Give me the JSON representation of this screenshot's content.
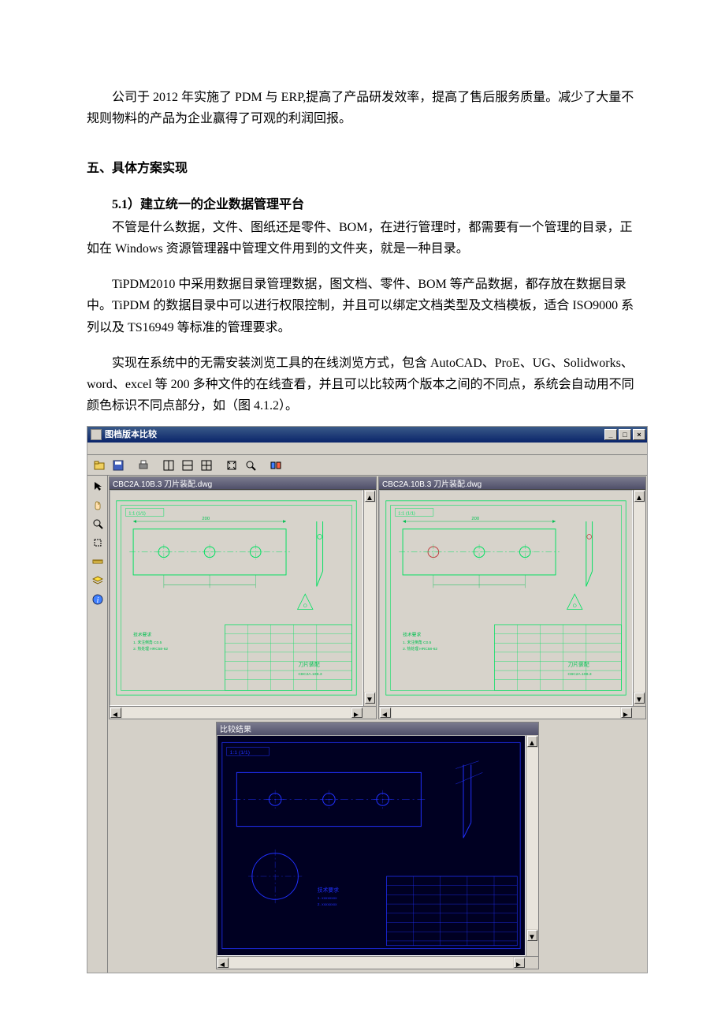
{
  "text": {
    "p1": "公司于 2012 年实施了 PDM 与 ERP,提高了产品研发效率，提高了售后服务质量。减少了大量不规则物料的产品为企业赢得了可观的利润回报。",
    "h1": "五、具体方案实现",
    "sh1": "5.1）建立统一的企业数据管理平台",
    "p2": "不管是什么数据，文件、图纸还是零件、BOM，在进行管理时，都需要有一个管理的目录，正如在 Windows 资源管理器中管理文件用到的文件夹，就是一种目录。",
    "p3": "TiPDM2010 中采用数据目录管理数据，图文档、零件、BOM 等产品数据，都存放在数据目录中。TiPDM 的数据目录中可以进行权限控制，并且可以绑定文档类型及文档模板，适合 ISO9000 系列以及 TS16949 等标准的管理要求。",
    "p4": "实现在系统中的无需安装浏览工具的在线浏览方式，包含 AutoCAD、ProE、UG、Solidworks、word、excel 等 200 多种文件的在线查看，并且可以比较两个版本之间的不同点，系统会自动用不同颜色标识不同点部分，如（图 4.1.2）。"
  },
  "screenshot": {
    "window_title": "图档版本比较",
    "winbtns": {
      "min": "_",
      "max": "□",
      "close": "×"
    },
    "toolbar_icons": [
      "open",
      "save",
      "sep",
      "print",
      "sep",
      "layout1",
      "layout2",
      "layout3",
      "sep",
      "fit",
      "zoom",
      "sep",
      "compare"
    ],
    "side_icons": [
      "arrow",
      "hand",
      "zoom",
      "pickbox",
      "measure",
      "layer",
      "info"
    ],
    "left_pane_title": "CBC2A.10B.3 刀片装配.dwg",
    "right_pane_title": "CBC2A.10B.3 刀片装配.dwg",
    "bottom_pane_title": "比较结果",
    "cad": {
      "stroke_main": "#00e060",
      "stroke_dim": "#00c050",
      "diff_color": "#c04040",
      "titleblock_text_color": "#00a040",
      "bottom_stroke": "#2030ff",
      "bottom_bg": "#000022",
      "paper_bg": "#d7d3cb"
    },
    "colors": {
      "chrome": "#d4d0c8",
      "titlebar_a": "#3a5a88",
      "titlebar_b": "#0a246a",
      "pane_title_a": "#7a7a8e",
      "pane_title_b": "#50506a",
      "border_dark": "#808080",
      "border_darker": "#404040"
    }
  }
}
